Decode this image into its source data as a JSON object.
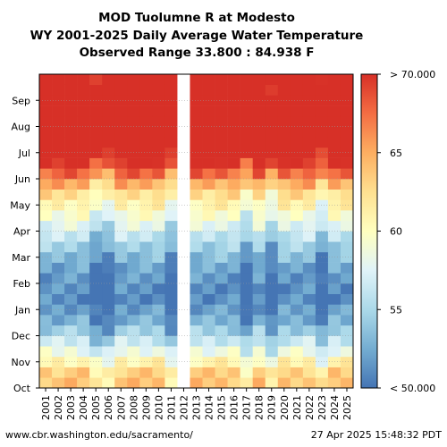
{
  "chart_data": {
    "type": "heatmap",
    "title": "MOD Tuolumne R at Modesto",
    "subtitle": "WY 2001-2025 Daily Average Water Temperature",
    "range_text": "Observed Range 33.800 : 84.938 F",
    "x": [
      "2001",
      "2002",
      "2003",
      "2004",
      "2005",
      "2006",
      "2007",
      "2008",
      "2009",
      "2010",
      "2011",
      "2012",
      "2013",
      "2014",
      "2015",
      "2016",
      "2017",
      "2018",
      "2019",
      "2020",
      "2021",
      "2022",
      "2023",
      "2024",
      "2025"
    ],
    "y_months": [
      "Oct",
      "Nov",
      "Dec",
      "Jan",
      "Feb",
      "Mar",
      "Apr",
      "May",
      "Jun",
      "Jul",
      "Aug",
      "Sep"
    ],
    "colorbar": {
      "ticks": [
        "> 70.000",
        "65",
        "60",
        "55",
        "< 50.000"
      ],
      "min": 50,
      "max": 70,
      "colors": [
        "#4575b4",
        "#74add1",
        "#abd9e9",
        "#e0f3f8",
        "#ffffbf",
        "#fee090",
        "#fdae61",
        "#f46d43",
        "#d73027"
      ]
    },
    "grid": true,
    "value_profile": {
      "months": [
        "Oct",
        "Nov",
        "Dec",
        "Jan",
        "Feb",
        "Mar",
        "Apr",
        "May",
        "Jun",
        "Jul",
        "Aug",
        "Sep"
      ],
      "typical_F": [
        64,
        58,
        53,
        51,
        52,
        55,
        59,
        63,
        70,
        75,
        75,
        73
      ]
    },
    "cool_years": [
      "2005",
      "2006",
      "2011",
      "2017",
      "2019",
      "2023"
    ],
    "no_data_years": [
      "2012"
    ]
  },
  "footer": {
    "left": "www.cbr.washington.edu/sacramento/",
    "right": "27 Apr 2025 15:48:32 PDT"
  }
}
